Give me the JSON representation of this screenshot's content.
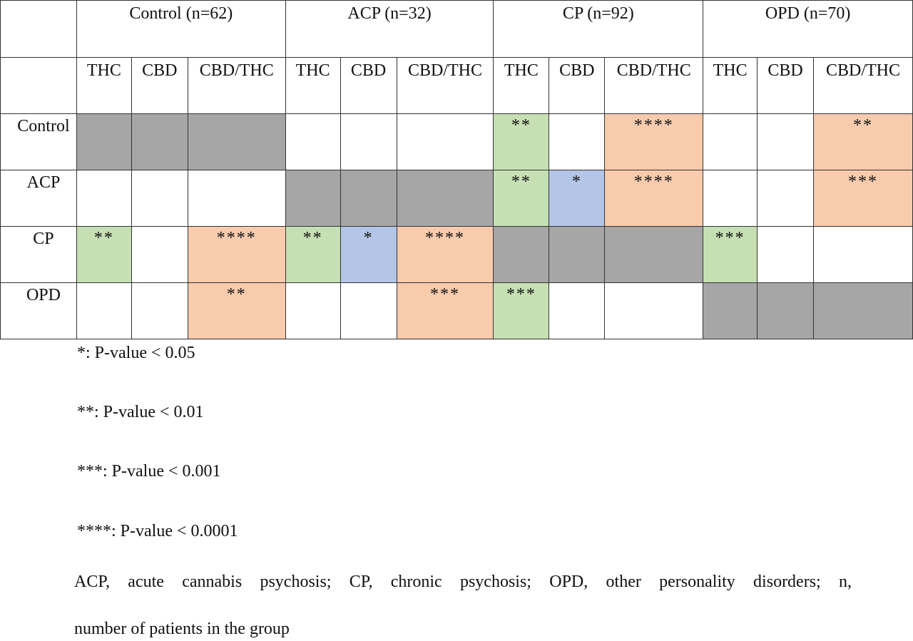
{
  "corner": "",
  "groups": [
    {
      "label": "Control (n=62)"
    },
    {
      "label": "ACP (n=32)"
    },
    {
      "label": "CP (n=92)"
    },
    {
      "label": "OPD (n=70)"
    }
  ],
  "subheaders": [
    "THC",
    "CBD",
    "CBD/THC",
    "THC",
    "CBD",
    "CBD/THC",
    "THC",
    "CBD",
    "CBD/THC",
    "THC",
    "CBD",
    "CBD/THC"
  ],
  "rows": [
    {
      "label": "Control",
      "cells": [
        {
          "text": "",
          "color": "gray"
        },
        {
          "text": "",
          "color": "gray"
        },
        {
          "text": "",
          "color": "gray"
        },
        {
          "text": "",
          "color": "white"
        },
        {
          "text": "",
          "color": "white"
        },
        {
          "text": "",
          "color": "white"
        },
        {
          "text": "**",
          "color": "green"
        },
        {
          "text": "",
          "color": "white"
        },
        {
          "text": "****",
          "color": "orange"
        },
        {
          "text": "",
          "color": "white"
        },
        {
          "text": "",
          "color": "white"
        },
        {
          "text": "**",
          "color": "orange"
        }
      ]
    },
    {
      "label": "ACP",
      "cells": [
        {
          "text": "",
          "color": "white"
        },
        {
          "text": "",
          "color": "white"
        },
        {
          "text": "",
          "color": "white"
        },
        {
          "text": "",
          "color": "gray"
        },
        {
          "text": "",
          "color": "gray"
        },
        {
          "text": "",
          "color": "gray"
        },
        {
          "text": "**",
          "color": "green"
        },
        {
          "text": "*",
          "color": "blue"
        },
        {
          "text": "****",
          "color": "orange"
        },
        {
          "text": "",
          "color": "white"
        },
        {
          "text": "",
          "color": "white"
        },
        {
          "text": "***",
          "color": "orange"
        }
      ]
    },
    {
      "label": "CP",
      "cells": [
        {
          "text": "**",
          "color": "green"
        },
        {
          "text": "",
          "color": "white"
        },
        {
          "text": "****",
          "color": "orange"
        },
        {
          "text": "**",
          "color": "green"
        },
        {
          "text": "*",
          "color": "blue"
        },
        {
          "text": "****",
          "color": "orange"
        },
        {
          "text": "",
          "color": "gray"
        },
        {
          "text": "",
          "color": "gray"
        },
        {
          "text": "",
          "color": "gray"
        },
        {
          "text": "***",
          "color": "green"
        },
        {
          "text": "",
          "color": "white"
        },
        {
          "text": "",
          "color": "white"
        }
      ]
    },
    {
      "label": "OPD",
      "cells": [
        {
          "text": "",
          "color": "white"
        },
        {
          "text": "",
          "color": "white"
        },
        {
          "text": "**",
          "color": "orange"
        },
        {
          "text": "",
          "color": "white"
        },
        {
          "text": "",
          "color": "white"
        },
        {
          "text": "***",
          "color": "orange"
        },
        {
          "text": "***",
          "color": "green"
        },
        {
          "text": "",
          "color": "white"
        },
        {
          "text": "",
          "color": "white"
        },
        {
          "text": "",
          "color": "gray"
        },
        {
          "text": "",
          "color": "gray"
        },
        {
          "text": "",
          "color": "gray"
        }
      ]
    }
  ],
  "legend": [
    "*: P-value < 0.05",
    "**: P-value < 0.01",
    "***: P-value < 0.001",
    "****: P-value < 0.0001"
  ],
  "footnote": {
    "line1": "ACP, acute cannabis psychosis; CP, chronic psychosis; OPD, other personality disorders; n,",
    "line2": "number of patients in the group"
  },
  "colors": {
    "gray": "#a6a6a6",
    "green": "#c6e0b4",
    "blue": "#b4c6e7",
    "orange": "#f8cbad",
    "white": "#ffffff"
  }
}
